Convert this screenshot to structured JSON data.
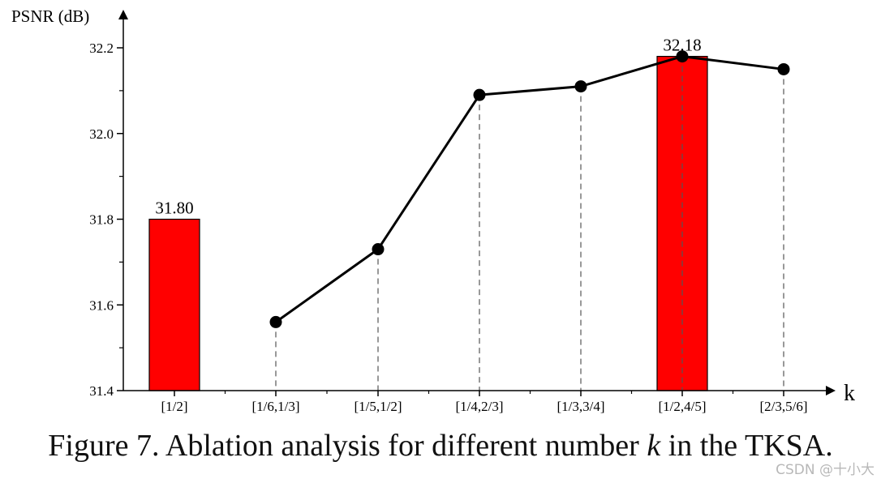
{
  "chart_data": {
    "type": "bar+line",
    "ylabel": "PSNR (dB)",
    "xlabel": "k",
    "categories": [
      "[1/2]",
      "[1/6,1/3]",
      "[1/5,1/2]",
      "[1/4,2/3]",
      "[1/3,3/4]",
      "[1/2,4/5]",
      "[2/3,5/6]"
    ],
    "bars": [
      {
        "category": "[1/2]",
        "value": 31.8,
        "label": "31.80"
      },
      {
        "category": "[1/2,4/5]",
        "value": 32.18,
        "label": "32.18"
      }
    ],
    "line": {
      "categories": [
        "[1/6,1/3]",
        "[1/5,1/2]",
        "[1/4,2/3]",
        "[1/3,3/4]",
        "[1/2,4/5]",
        "[2/3,5/6]"
      ],
      "values": [
        31.56,
        31.73,
        32.09,
        32.11,
        32.18,
        32.15
      ]
    },
    "ylim": [
      31.4,
      32.25
    ],
    "yticks": [
      "31.4",
      "31.6",
      "31.8",
      "32.0",
      "32.2"
    ],
    "grid": false,
    "colors": {
      "bar": "#ff0000",
      "line": "#000000",
      "drop_lines": "#555555"
    }
  },
  "caption": {
    "prefix": "Figure 7. Ablation analysis for different number",
    "variable": "k",
    "suffix": "in the TKSA."
  },
  "watermark": "CSDN @十小大"
}
